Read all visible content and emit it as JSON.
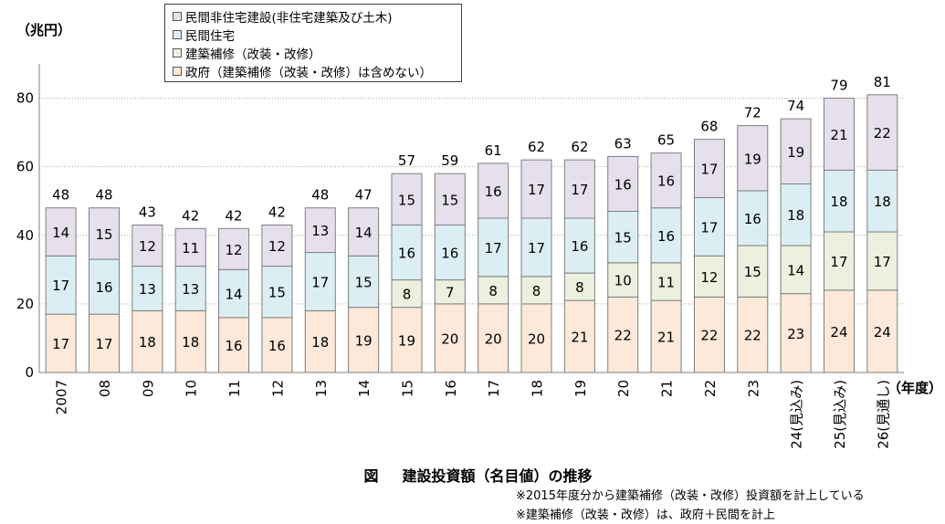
{
  "y_axis_unit": "（兆円）",
  "x_axis_unit": "（年度）",
  "caption_prefix": "図",
  "caption_title": "建設投資額（名目値）の推移",
  "notes": [
    "※2015年度分から建築補修（改装・改修）投資額を計上している",
    "※建築補修（改装・改修）は、政府＋民間を計上"
  ],
  "colors": {
    "government": "#fde9d9",
    "repair": "#ebf1de",
    "residential": "#dbeef4",
    "non_residential": "#e5e0ec",
    "bar_border": "#7f7f7f",
    "gridline": "#a6a6a6"
  },
  "chart_data": {
    "type": "bar",
    "stacked": true,
    "categories": [
      "2007",
      "08",
      "09",
      "10",
      "11",
      "12",
      "13",
      "14",
      "15",
      "16",
      "17",
      "18",
      "19",
      "20",
      "21",
      "22",
      "23",
      "24(見込み)",
      "25(見込み)",
      "26(見通し)"
    ],
    "series": [
      {
        "name": "政府（建築補修（改装・改修）は含めない）",
        "key": "government",
        "values": [
          17,
          17,
          18,
          18,
          16,
          16,
          18,
          19,
          19,
          20,
          20,
          20,
          21,
          22,
          21,
          22,
          22,
          23,
          24,
          24
        ]
      },
      {
        "name": "建築補修（改装・改修）",
        "key": "repair",
        "values": [
          null,
          null,
          null,
          null,
          null,
          null,
          null,
          null,
          8,
          7,
          8,
          8,
          8,
          10,
          11,
          12,
          15,
          14,
          17,
          17
        ]
      },
      {
        "name": "民間住宅",
        "key": "residential",
        "values": [
          17,
          16,
          13,
          13,
          14,
          15,
          17,
          15,
          16,
          16,
          17,
          17,
          16,
          15,
          16,
          17,
          16,
          18,
          18,
          18
        ]
      },
      {
        "name": "民間非住宅建設(非住宅建築及び土木)",
        "key": "non_residential",
        "values": [
          14,
          15,
          12,
          11,
          12,
          12,
          13,
          14,
          15,
          15,
          16,
          17,
          17,
          16,
          16,
          17,
          19,
          19,
          21,
          22
        ]
      }
    ],
    "totals": [
      48,
      48,
      43,
      42,
      42,
      42,
      48,
      47,
      57,
      59,
      61,
      62,
      62,
      63,
      65,
      68,
      72,
      74,
      79,
      81
    ],
    "legend_order": [
      "non_residential",
      "residential",
      "repair",
      "government"
    ],
    "legend_position": "top",
    "yticks": [
      0,
      20,
      40,
      60,
      80
    ],
    "ylim": [
      0,
      90
    ],
    "grid": "horizontal dotted"
  }
}
